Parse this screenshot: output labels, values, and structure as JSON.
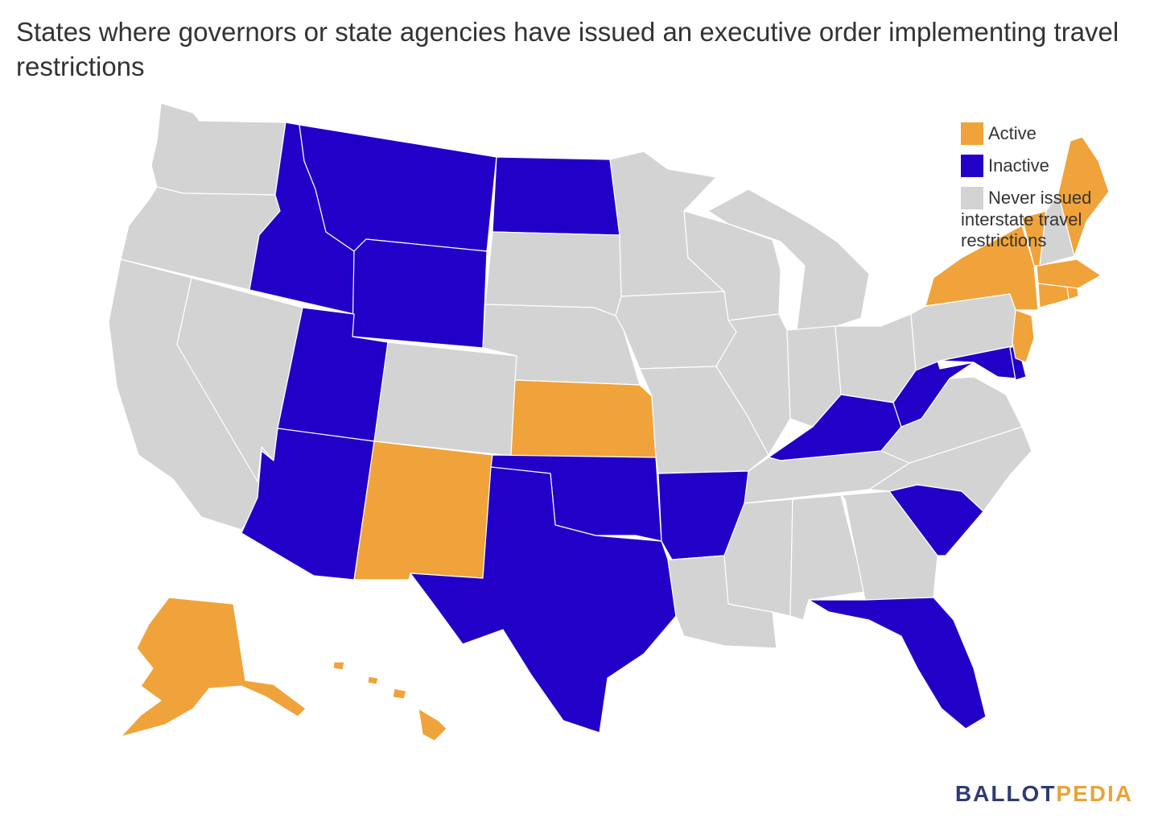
{
  "title": "States where governors or state agencies have issued an executive order implementing travel restrictions",
  "colors": {
    "active": "#f0a33a",
    "inactive": "#2200c8",
    "never": "#d3d3d3"
  },
  "legend": {
    "items": [
      {
        "key": "active",
        "label": "Active"
      },
      {
        "key": "inactive",
        "label": "Inactive"
      },
      {
        "key": "never",
        "label": "Never issued"
      }
    ],
    "never_continuation": "interstate travel restrictions"
  },
  "states": {
    "active": [
      "AK",
      "HI",
      "NM",
      "KS",
      "NY",
      "NJ",
      "CT",
      "RI",
      "MA",
      "ME",
      "VT"
    ],
    "inactive": [
      "MT",
      "ID",
      "WY",
      "UT",
      "AZ",
      "ND",
      "TX",
      "OK",
      "AR",
      "KY",
      "WV",
      "SC",
      "FL",
      "DE",
      "MD"
    ],
    "never": [
      "WA",
      "OR",
      "CA",
      "NV",
      "CO",
      "SD",
      "NE",
      "MN",
      "IA",
      "MO",
      "WI",
      "IL",
      "MI",
      "IN",
      "OH",
      "PA",
      "VA",
      "NC",
      "TN",
      "GA",
      "AL",
      "MS",
      "LA",
      "NH"
    ]
  },
  "brand": {
    "part1": "BALLOT",
    "part2": "PEDIA"
  }
}
